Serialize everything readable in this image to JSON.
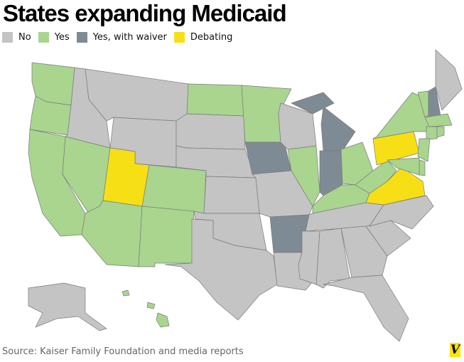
{
  "title": "States expanding Medicaid",
  "legend": [
    {
      "key": "no",
      "label": "No",
      "color": "#c4c4c4"
    },
    {
      "key": "yes",
      "label": "Yes",
      "color": "#a9d58f"
    },
    {
      "key": "waiver",
      "label": "Yes, with waiver",
      "color": "#7f8b94"
    },
    {
      "key": "debating",
      "label": "Debating",
      "color": "#f7df16"
    }
  ],
  "states": {
    "WA": "yes",
    "OR": "yes",
    "CA": "yes",
    "NV": "yes",
    "ID": "no",
    "MT": "no",
    "WY": "no",
    "UT": "debating",
    "CO": "yes",
    "AZ": "yes",
    "NM": "yes",
    "ND": "yes",
    "SD": "no",
    "NE": "no",
    "KS": "no",
    "OK": "no",
    "TX": "no",
    "MN": "yes",
    "IA": "waiver",
    "MO": "no",
    "AR": "waiver",
    "LA": "no",
    "WI": "no",
    "IL": "yes",
    "MI": "waiver",
    "IN": "waiver",
    "OH": "yes",
    "KY": "yes",
    "TN": "no",
    "MS": "no",
    "AL": "no",
    "GA": "no",
    "FL": "no",
    "SC": "no",
    "NC": "no",
    "VA": "debating",
    "WV": "yes",
    "PA": "debating",
    "NY": "yes",
    "VT": "yes",
    "NH": "waiver",
    "ME": "no",
    "MA": "yes",
    "CT": "yes",
    "RI": "yes",
    "NJ": "yes",
    "DE": "yes",
    "MD": "yes",
    "AK": "no",
    "HI": "yes"
  },
  "source": "Source: Kaiser Family Foundation and media reports",
  "logo": "V"
}
